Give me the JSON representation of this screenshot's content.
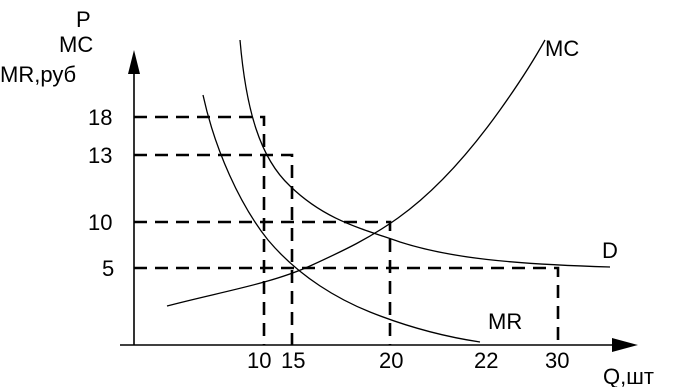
{
  "axes": {
    "y_label_lines": [
      "P",
      "MC",
      "MR,руб"
    ],
    "x_label": "Q,шт"
  },
  "curves": {
    "mc": "MC",
    "d": "D",
    "mr": "MR"
  },
  "y_ticks": [
    "18",
    "13",
    "10",
    "5"
  ],
  "x_ticks": [
    "10",
    "15",
    "20",
    "22",
    "30"
  ],
  "chart_data": {
    "type": "line",
    "xlabel": "Q,шт",
    "ylabel": "P MC MR,руб",
    "series": [
      {
        "name": "MC",
        "points": [
          [
            3,
            1.5
          ],
          [
            10,
            4
          ],
          [
            15,
            5.5
          ],
          [
            20,
            10
          ],
          [
            26,
            18.5
          ],
          [
            29,
            29
          ]
        ]
      },
      {
        "name": "D",
        "points": [
          [
            7,
            30
          ],
          [
            10,
            18
          ],
          [
            15,
            13
          ],
          [
            20,
            10
          ],
          [
            30,
            5
          ],
          [
            33,
            4.5
          ]
        ]
      },
      {
        "name": "MR",
        "points": [
          [
            5.5,
            22.5
          ],
          [
            10,
            10
          ],
          [
            15,
            5
          ],
          [
            20,
            1.8
          ],
          [
            22,
            0
          ]
        ]
      }
    ],
    "guides": [
      {
        "x": 10,
        "y": 18
      },
      {
        "x": 15,
        "y": 13
      },
      {
        "x": 20,
        "y": 10
      },
      {
        "x": 30,
        "y": 5
      }
    ]
  }
}
